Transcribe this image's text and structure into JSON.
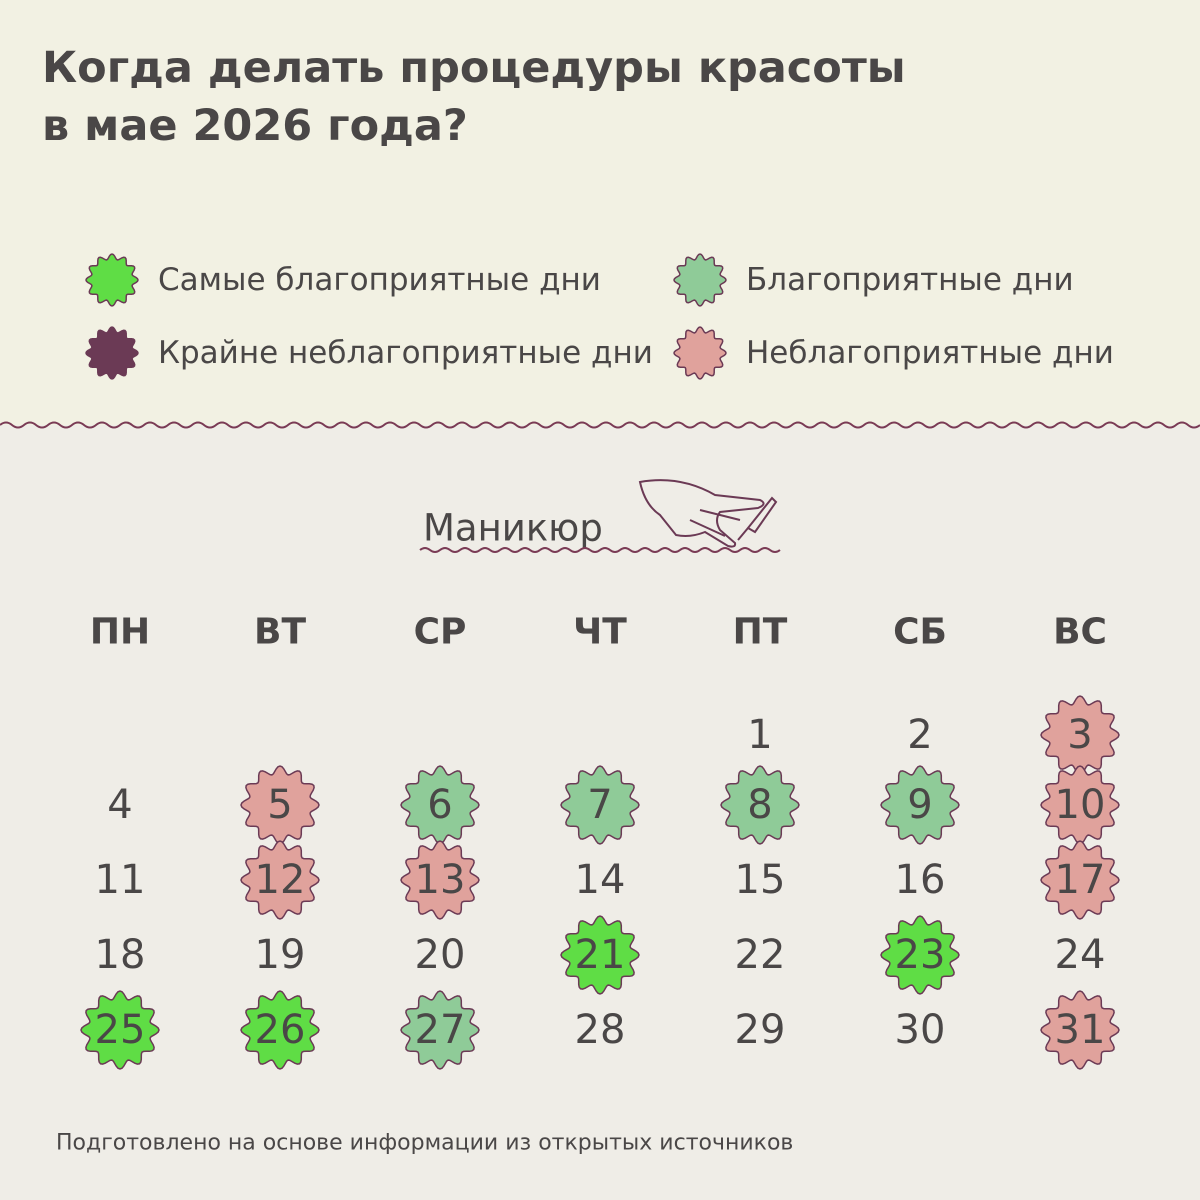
{
  "header": {
    "title_lines": [
      "Когда делать процедуры красоты",
      "в мае 2026 года?"
    ]
  },
  "legend": [
    {
      "label": "Самые благоприятные дни",
      "color": "#5fdd45"
    },
    {
      "label": "Благоприятные дни",
      "color": "#8fcb98"
    },
    {
      "label": "Крайне неблагоприятные дни",
      "color": "#6b3a55"
    },
    {
      "label": "Неблагоприятные дни",
      "color": "#e0a29c"
    }
  ],
  "calendar": {
    "title": "Маникюр",
    "weekdays": [
      "ПН",
      "ВТ",
      "СР",
      "ЧТ",
      "ПТ",
      "СБ",
      "ВС"
    ],
    "days": [
      {
        "day": 1
      },
      {
        "day": 2
      },
      {
        "day": 3,
        "color": "#e0a29c"
      },
      {
        "day": 4
      },
      {
        "day": 5,
        "color": "#e0a29c"
      },
      {
        "day": 6,
        "color": "#8fcb98"
      },
      {
        "day": 7,
        "color": "#8fcb98"
      },
      {
        "day": 8,
        "color": "#8fcb98"
      },
      {
        "day": 9,
        "color": "#8fcb98"
      },
      {
        "day": 10,
        "color": "#e0a29c"
      },
      {
        "day": 11
      },
      {
        "day": 12,
        "color": "#e0a29c"
      },
      {
        "day": 13,
        "color": "#e0a29c"
      },
      {
        "day": 14
      },
      {
        "day": 15
      },
      {
        "day": 16
      },
      {
        "day": 17,
        "color": "#e0a29c"
      },
      {
        "day": 18
      },
      {
        "day": 19
      },
      {
        "day": 20
      },
      {
        "day": 21,
        "color": "#5fdd45"
      },
      {
        "day": 22
      },
      {
        "day": 23,
        "color": "#5fdd45"
      },
      {
        "day": 24
      },
      {
        "day": 25,
        "color": "#5fdd45"
      },
      {
        "day": 26,
        "color": "#5fdd45"
      },
      {
        "day": 27,
        "color": "#8fcb98"
      },
      {
        "day": 28
      },
      {
        "day": 29
      },
      {
        "day": 30
      },
      {
        "day": 31,
        "color": "#e0a29c"
      }
    ]
  },
  "footer": {
    "note": "Подготовлено на основе информации из открытых источников"
  }
}
